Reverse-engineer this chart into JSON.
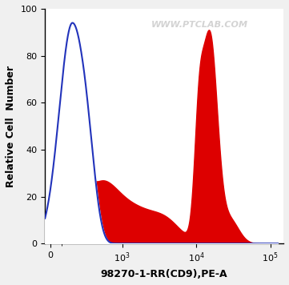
{
  "xlabel": "98270-1-RR(CD9),PE-A",
  "ylabel": "Relative Cell  Number",
  "ylim": [
    0,
    100
  ],
  "yticks": [
    0,
    20,
    40,
    60,
    80,
    100
  ],
  "watermark": "WWW.PTCLAB.COM",
  "blue_color": "#2233bb",
  "red_color": "#dd0000",
  "background_color": "#f0f0f0",
  "plot_bg_color": "#ffffff",
  "linthresh": 300
}
